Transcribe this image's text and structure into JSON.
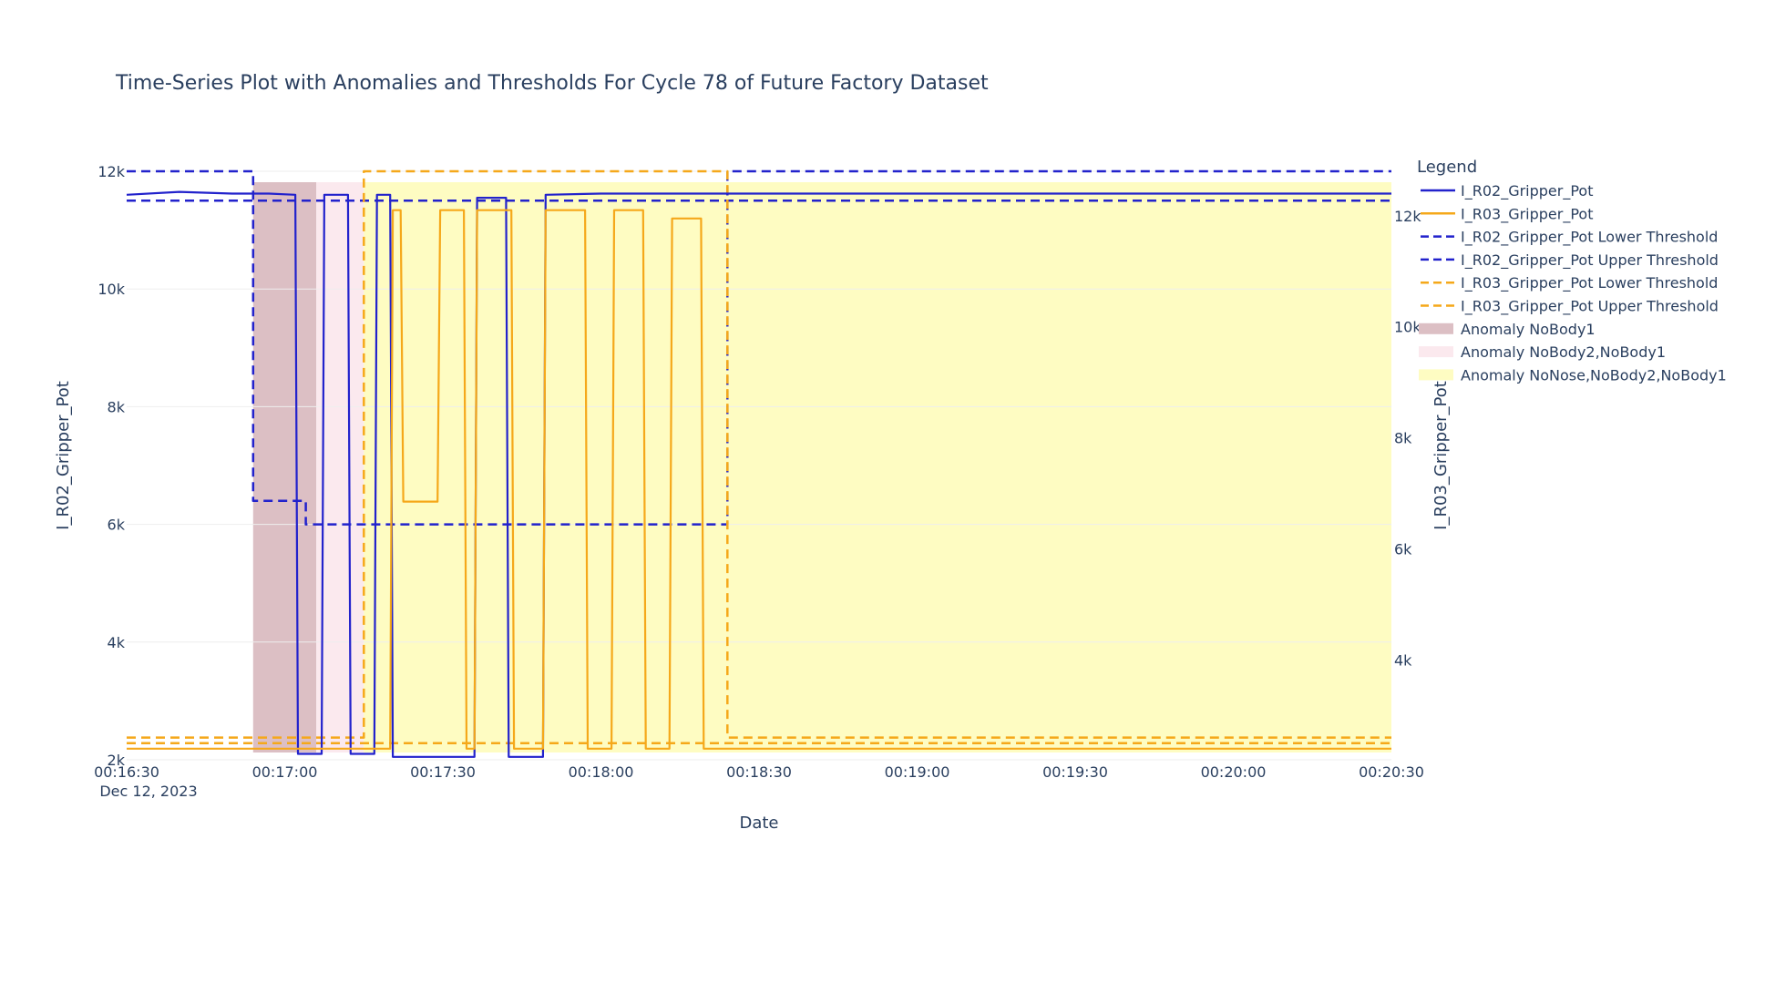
{
  "chart_data": {
    "type": "line",
    "title": "Time-Series Plot with Anomalies and Thresholds For Cycle 78 of Future Factory Dataset",
    "xlabel": "Date",
    "y1label": "I_R02_Gripper_Pot",
    "y2label": "I_R03_Gripper_Pot",
    "x_ticks": [
      "00:16:30",
      "00:17:00",
      "00:17:30",
      "00:18:00",
      "00:18:30",
      "00:19:00",
      "00:19:30",
      "00:20:00",
      "00:20:30"
    ],
    "x_date_label": "Dec 12, 2023",
    "x_range": [
      "00:16:30",
      "00:20:30"
    ],
    "y1_ticks": [
      "2k",
      "4k",
      "6k",
      "8k",
      "10k",
      "12k"
    ],
    "y1_range": [
      2000,
      12000
    ],
    "y2_ticks": [
      "4k",
      "6k",
      "8k",
      "10k",
      "12k"
    ],
    "y2_range": [
      2200,
      12800
    ],
    "legend_title": "Legend",
    "legend_placement": "right",
    "colors": {
      "r02": "#2222cc",
      "r03": "#f5a81a",
      "nobody1": "#dcbfc4",
      "nobody2_nobody1": "#fbe9ee",
      "nonose": "#fefcc2"
    },
    "anomalies": [
      {
        "name": "Anomaly NoBody1",
        "x_start": "00:16:54",
        "x_end": "00:17:06"
      },
      {
        "name": "Anomaly NoBody2,NoBody1",
        "x_start": "00:17:06",
        "x_end": "00:17:15"
      },
      {
        "name": "Anomaly NoNose,NoBody2,NoBody1",
        "x_start": "00:17:15",
        "x_end": "00:20:30"
      }
    ],
    "series": [
      {
        "name": "I_R02_Gripper_Pot",
        "axis": "y1",
        "color": "#2222cc",
        "points": [
          [
            "00:16:30",
            11600
          ],
          [
            "00:16:40",
            11650
          ],
          [
            "00:16:50",
            11620
          ],
          [
            "00:16:57",
            11620
          ],
          [
            "00:17:02",
            11600
          ],
          [
            "00:17:02.5",
            2100
          ],
          [
            "00:17:07",
            2100
          ],
          [
            "00:17:07.5",
            11600
          ],
          [
            "00:17:12",
            11600
          ],
          [
            "00:17:12.5",
            2100
          ],
          [
            "00:17:17",
            2100
          ],
          [
            "00:17:17.5",
            11600
          ],
          [
            "00:17:20",
            11600
          ],
          [
            "00:17:20.5",
            2050
          ],
          [
            "00:17:36",
            2050
          ],
          [
            "00:17:36.5",
            11550
          ],
          [
            "00:17:42",
            11550
          ],
          [
            "00:17:42.5",
            2050
          ],
          [
            "00:17:49",
            2050
          ],
          [
            "00:17:49.5",
            11600
          ],
          [
            "00:18:00",
            11620
          ],
          [
            "00:18:30",
            11620
          ],
          [
            "00:19:00",
            11620
          ],
          [
            "00:19:30",
            11620
          ],
          [
            "00:20:00",
            11620
          ],
          [
            "00:20:30",
            11620
          ]
        ]
      },
      {
        "name": "I_R03_Gripper_Pot",
        "axis": "y2",
        "color": "#f5a81a",
        "points": [
          [
            "00:16:30",
            2400
          ],
          [
            "00:17:20",
            2400
          ],
          [
            "00:17:20.5",
            12100
          ],
          [
            "00:17:22",
            12100
          ],
          [
            "00:17:22.5",
            6850
          ],
          [
            "00:17:29",
            6850
          ],
          [
            "00:17:29.5",
            12100
          ],
          [
            "00:17:34",
            12100
          ],
          [
            "00:17:34.5",
            2400
          ],
          [
            "00:17:36",
            2400
          ],
          [
            "00:17:36.5",
            12100
          ],
          [
            "00:17:43",
            12100
          ],
          [
            "00:17:43.5",
            2400
          ],
          [
            "00:17:49",
            2400
          ],
          [
            "00:17:49.5",
            12100
          ],
          [
            "00:17:57",
            12100
          ],
          [
            "00:17:57.5",
            2400
          ],
          [
            "00:18:02",
            2400
          ],
          [
            "00:18:02.5",
            12100
          ],
          [
            "00:18:08",
            12100
          ],
          [
            "00:18:08.5",
            2400
          ],
          [
            "00:18:13",
            2400
          ],
          [
            "00:18:13.5",
            11950
          ],
          [
            "00:18:19",
            11950
          ],
          [
            "00:18:19.5",
            2400
          ],
          [
            "00:20:30",
            2400
          ]
        ]
      },
      {
        "name": "I_R02_Gripper_Pot Lower Threshold",
        "axis": "y1",
        "color": "#2222cc",
        "dash": true,
        "points": [
          [
            "00:16:30",
            11500
          ],
          [
            "00:20:30",
            11500
          ]
        ]
      },
      {
        "name": "I_R02_Gripper_Pot Upper Threshold",
        "axis": "y1",
        "color": "#2222cc",
        "dash": true,
        "points": [
          [
            "00:16:30",
            12000
          ],
          [
            "00:16:54",
            12000
          ],
          [
            "00:16:54",
            6400
          ],
          [
            "00:17:04",
            6400
          ],
          [
            "00:17:04",
            6000
          ],
          [
            "00:18:24",
            6000
          ],
          [
            "00:18:24",
            12000
          ],
          [
            "00:20:30",
            12000
          ]
        ]
      },
      {
        "name": "I_R03_Gripper_Pot Lower Threshold",
        "axis": "y2",
        "color": "#f5a81a",
        "dash": true,
        "points": [
          [
            "00:16:30",
            2500
          ],
          [
            "00:20:30",
            2500
          ]
        ]
      },
      {
        "name": "I_R03_Gripper_Pot Upper Threshold",
        "axis": "y2",
        "color": "#f5a81a",
        "dash": true,
        "points": [
          [
            "00:16:30",
            2600
          ],
          [
            "00:17:15",
            2600
          ],
          [
            "00:17:15",
            12800
          ],
          [
            "00:18:24",
            12800
          ],
          [
            "00:18:24",
            2600
          ],
          [
            "00:20:30",
            2600
          ]
        ]
      }
    ],
    "legend": [
      {
        "label": "I_R02_Gripper_Pot",
        "kind": "line",
        "color": "#2222cc"
      },
      {
        "label": "I_R03_Gripper_Pot",
        "kind": "line",
        "color": "#f5a81a"
      },
      {
        "label": "I_R02_Gripper_Pot Lower Threshold",
        "kind": "dash",
        "color": "#2222cc"
      },
      {
        "label": "I_R02_Gripper_Pot Upper Threshold",
        "kind": "dash",
        "color": "#2222cc"
      },
      {
        "label": "I_R03_Gripper_Pot Lower Threshold",
        "kind": "dash",
        "color": "#f5a81a"
      },
      {
        "label": "I_R03_Gripper_Pot Upper Threshold",
        "kind": "dash",
        "color": "#f5a81a"
      },
      {
        "label": "Anomaly NoBody1",
        "kind": "fill",
        "color": "#dcbfc4"
      },
      {
        "label": "Anomaly NoBody2,NoBody1",
        "kind": "fill",
        "color": "#fbe9ee"
      },
      {
        "label": "Anomaly NoNose,NoBody2,NoBody1",
        "kind": "fill",
        "color": "#fefcc2"
      }
    ]
  }
}
